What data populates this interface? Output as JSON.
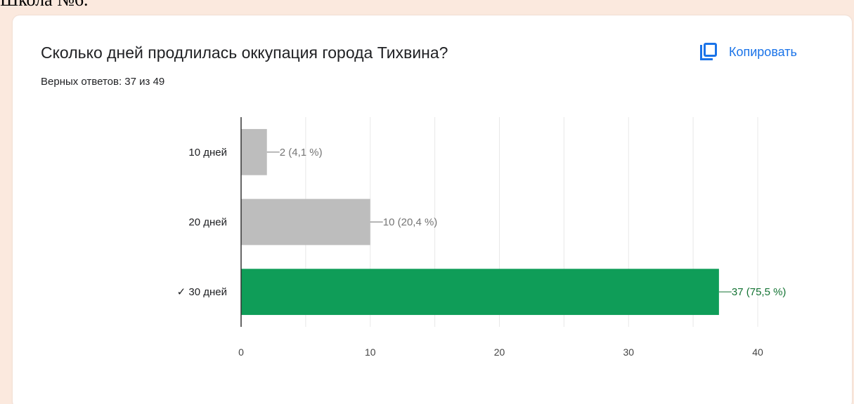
{
  "page": {
    "heading": "Школа №6."
  },
  "card": {
    "question": "Сколько дней продлилась оккупация города Тихвина?",
    "score_text": "Верных ответов: 37 из 49",
    "copy_label": "Копировать",
    "copy_icon": "copy-icon",
    "accent_color": "#1a73e8"
  },
  "chart_data": {
    "type": "bar",
    "orientation": "horizontal",
    "categories": [
      "10 дней",
      "20 дней",
      "✓ 30 дней"
    ],
    "values": [
      2,
      10,
      37
    ],
    "data_labels": [
      "2 (4,1 %)",
      "10 (20,4 %)",
      "37 (75,5 %)"
    ],
    "correct_index": 2,
    "xlim": [
      0,
      40
    ],
    "x_ticks": [
      0,
      10,
      20,
      30,
      40
    ],
    "grid": true,
    "colors": {
      "default_bar": "#bdbdbd",
      "correct_bar": "#0f9d58",
      "default_label": "#757575",
      "correct_label": "#137333"
    }
  }
}
